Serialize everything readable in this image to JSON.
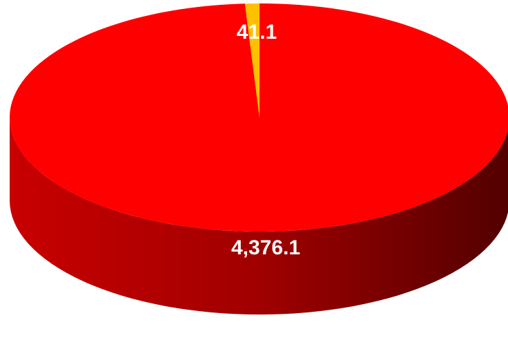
{
  "chart_data": {
    "type": "pie",
    "style": "3d",
    "slices": [
      {
        "label": "",
        "value": 4376.1,
        "display": "4,376.1",
        "color": "#ff0000"
      },
      {
        "label": "",
        "value": 41.1,
        "display": "41.1",
        "color": "#ffc000"
      }
    ],
    "title": "",
    "legend": "none"
  }
}
